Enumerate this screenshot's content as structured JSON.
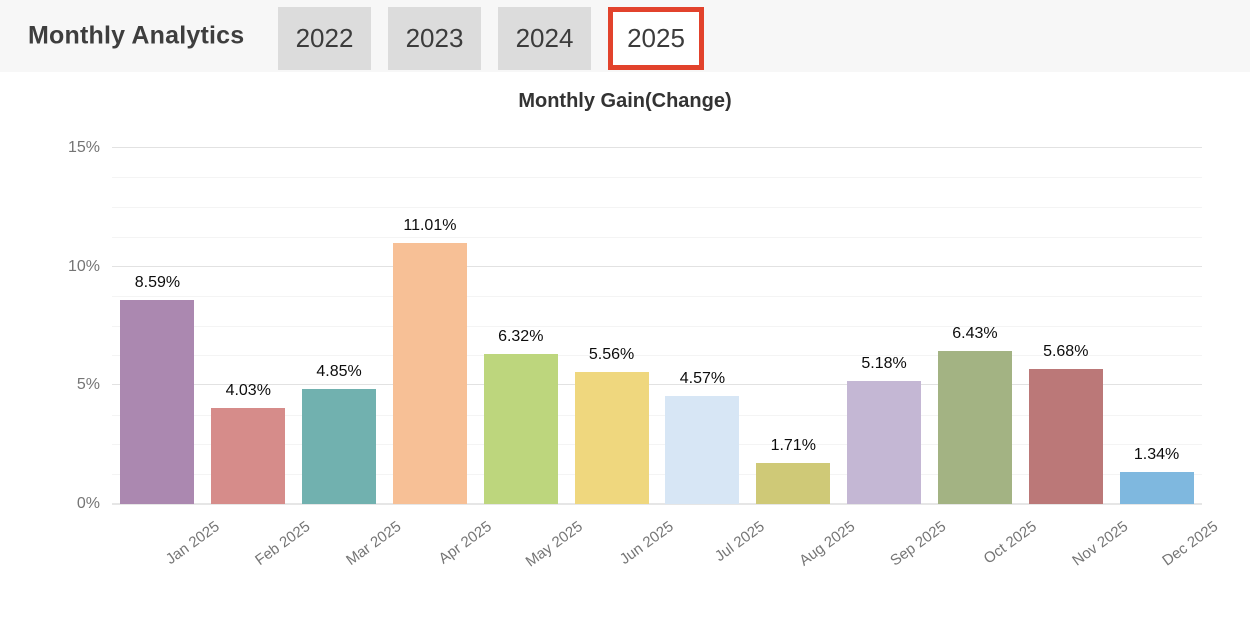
{
  "header": {
    "title": "Monthly Analytics",
    "tabs": [
      {
        "label": "2022",
        "selected": false
      },
      {
        "label": "2023",
        "selected": false
      },
      {
        "label": "2024",
        "selected": false
      },
      {
        "label": "2025",
        "selected": true
      }
    ]
  },
  "colors": {
    "accent": "#e2422c",
    "header_bg": "#f7f7f7",
    "tab_bg": "#dcdcdc",
    "tab_text": "#3c3c3c",
    "axis_text": "#757575",
    "value_text": "#0d0d0d",
    "major_grid": "#e2e2e2",
    "minor_grid": "#f4f4f4"
  },
  "chart_data": {
    "type": "bar",
    "title": "Monthly Gain(Change)",
    "categories": [
      "Jan 2025",
      "Feb 2025",
      "Mar 2025",
      "Apr 2025",
      "May 2025",
      "Jun 2025",
      "Jul 2025",
      "Aug 2025",
      "Sep 2025",
      "Oct 2025",
      "Nov 2025",
      "Dec 2025"
    ],
    "values": [
      8.59,
      4.03,
      4.85,
      11.01,
      6.32,
      5.56,
      4.57,
      1.71,
      5.18,
      6.43,
      5.68,
      1.34
    ],
    "value_labels": [
      "8.59%",
      "4.03%",
      "4.85%",
      "11.01%",
      "6.32%",
      "5.56%",
      "4.57%",
      "1.71%",
      "5.18%",
      "6.43%",
      "5.68%",
      "1.34%"
    ],
    "bar_colors": [
      "#ab88b0",
      "#d68c8a",
      "#71b1af",
      "#f7c096",
      "#bdd67d",
      "#efd77e",
      "#d7e6f5",
      "#cfc977",
      "#c4b7d4",
      "#a3b383",
      "#bb7878",
      "#7fb8df"
    ],
    "xlabel": "",
    "ylabel": "",
    "y_ticks": [
      0,
      5,
      10,
      15
    ],
    "y_tick_labels": [
      "0%",
      "5%",
      "10%",
      "15%"
    ],
    "ylim": [
      0,
      15
    ],
    "minor_grid_step": 1.25,
    "grid": true,
    "legend": "none"
  }
}
